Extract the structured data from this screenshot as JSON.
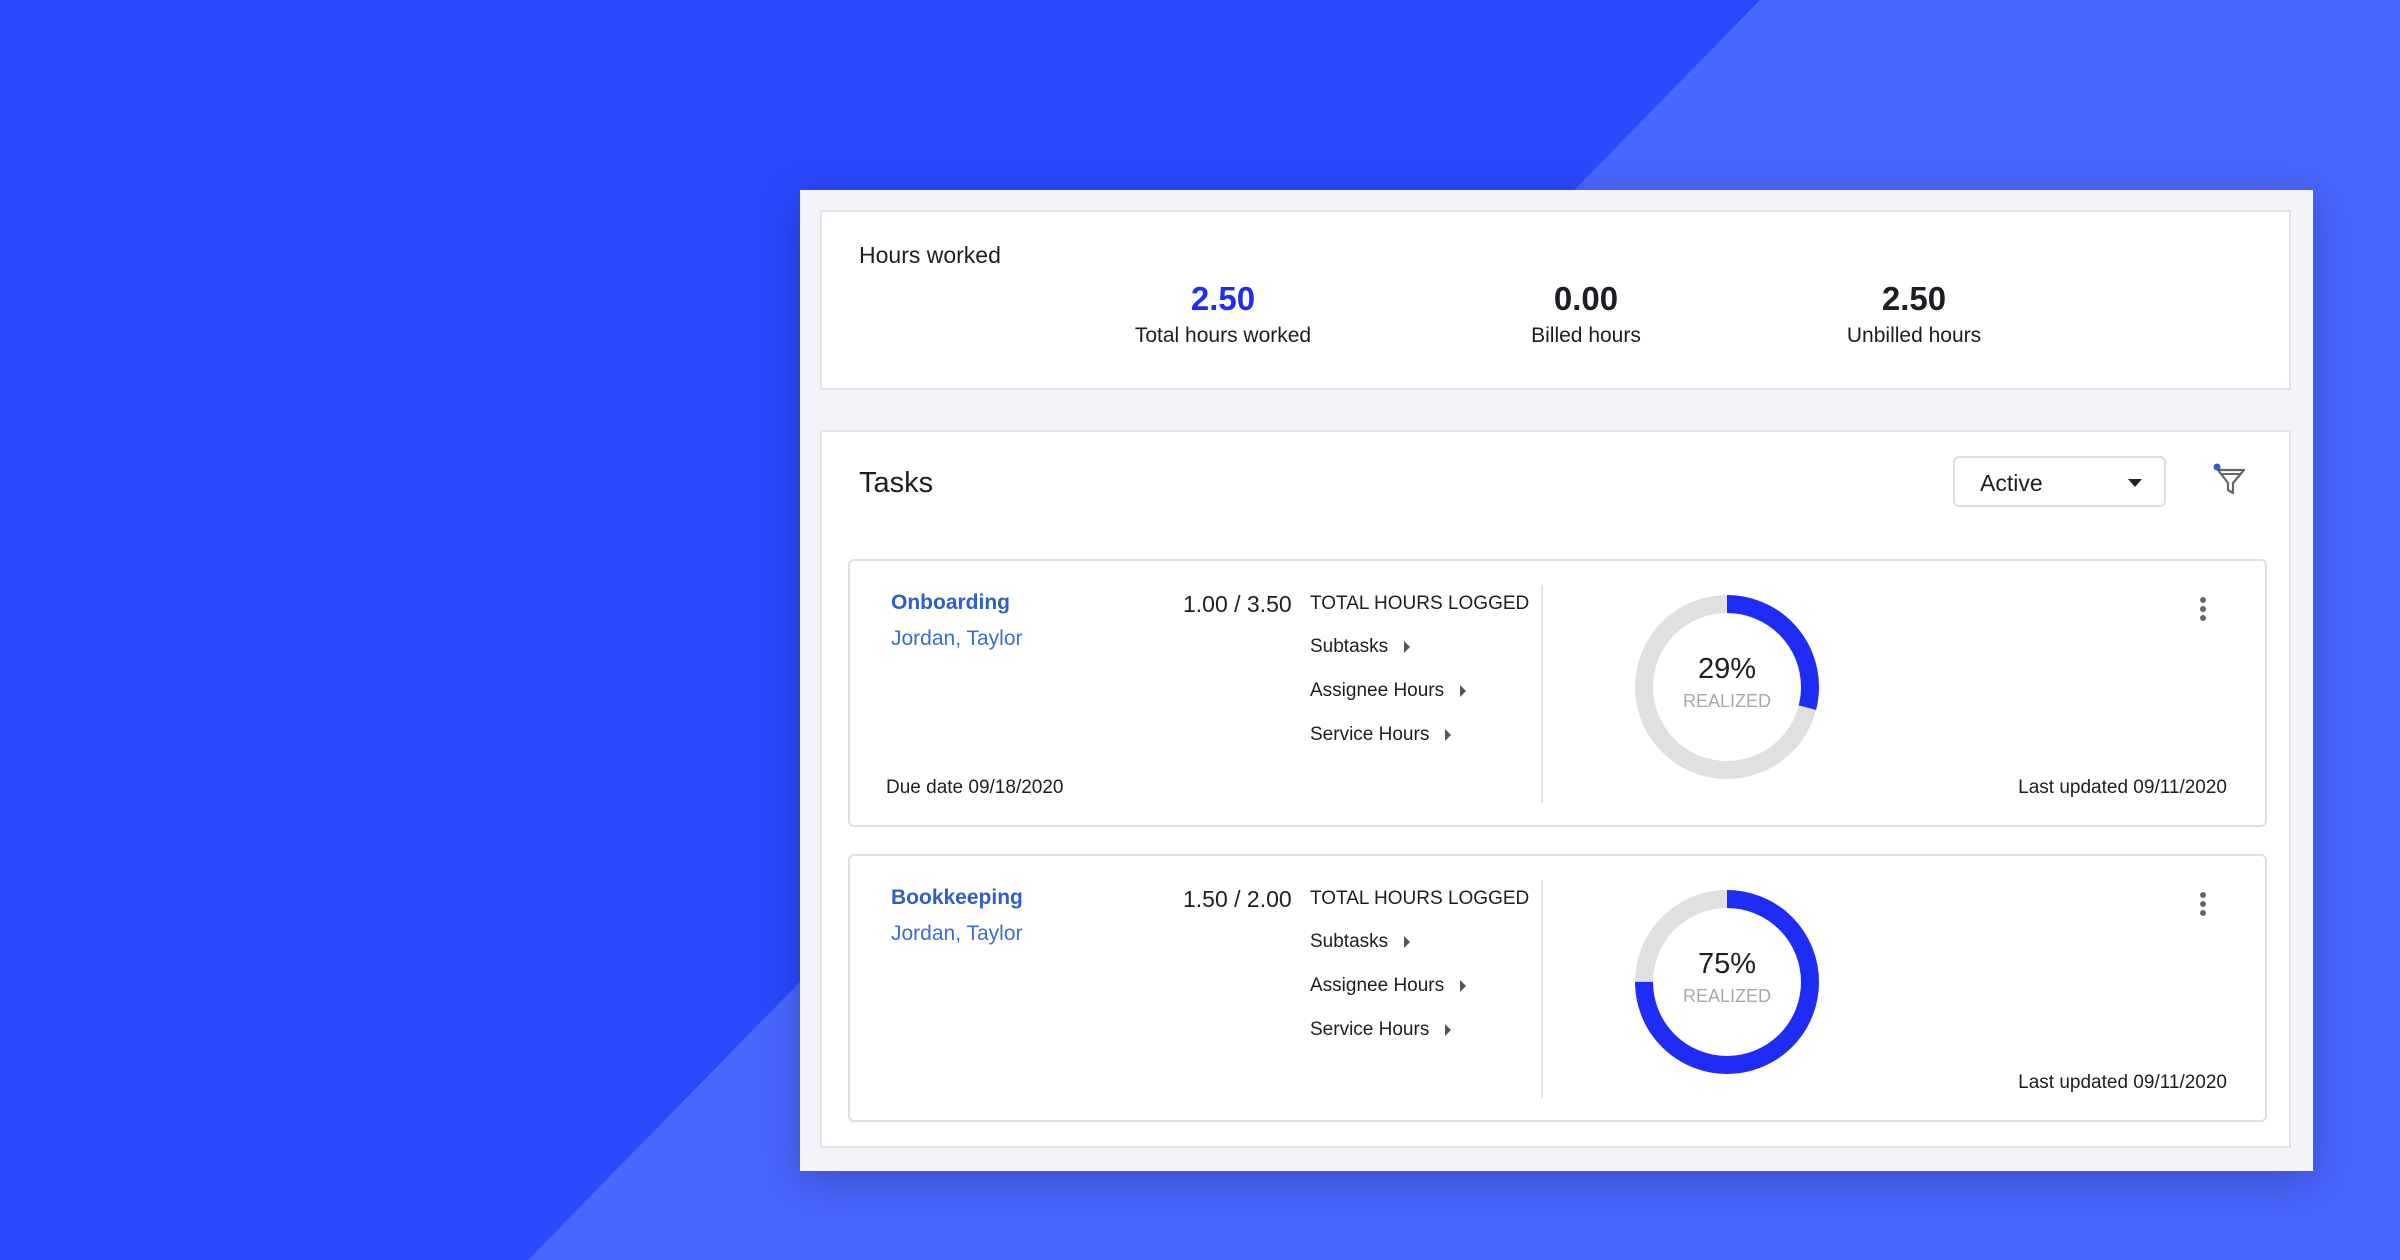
{
  "colors": {
    "accent": "#1f2cf5",
    "background_dark": "#2a4afd",
    "background_light": "#4a67fe",
    "link": "#2f5fc8"
  },
  "hours": {
    "title": "Hours worked",
    "stats": [
      {
        "value": "2.50",
        "label": "Total hours worked",
        "color": "#1f2cf5"
      },
      {
        "value": "0.00",
        "label": "Billed hours",
        "color": "#1d1d24"
      },
      {
        "value": "2.50",
        "label": "Unbilled hours",
        "color": "#1d1d24"
      }
    ]
  },
  "tasks": {
    "title": "Tasks",
    "status_filter": "Active",
    "filter_icon": "filter-icon",
    "items": [
      {
        "name": "Onboarding",
        "assignees": "Jordan, Taylor",
        "hours": "1.00 / 3.50",
        "hours_label": "TOTAL HOURS LOGGED",
        "links": [
          "Subtasks",
          "Assignee Hours",
          "Service Hours"
        ],
        "percent": 29,
        "percent_label": "29%",
        "realized_label": "REALIZED",
        "due": "Due date 09/18/2020",
        "updated": "Last updated 09/11/2020"
      },
      {
        "name": "Bookkeeping",
        "assignees": "Jordan, Taylor",
        "hours": "1.50 / 2.00",
        "hours_label": "TOTAL HOURS LOGGED",
        "links": [
          "Subtasks",
          "Assignee Hours",
          "Service Hours"
        ],
        "percent": 75,
        "percent_label": "75%",
        "realized_label": "REALIZED",
        "due": "",
        "updated": "Last updated 09/11/2020"
      }
    ]
  }
}
